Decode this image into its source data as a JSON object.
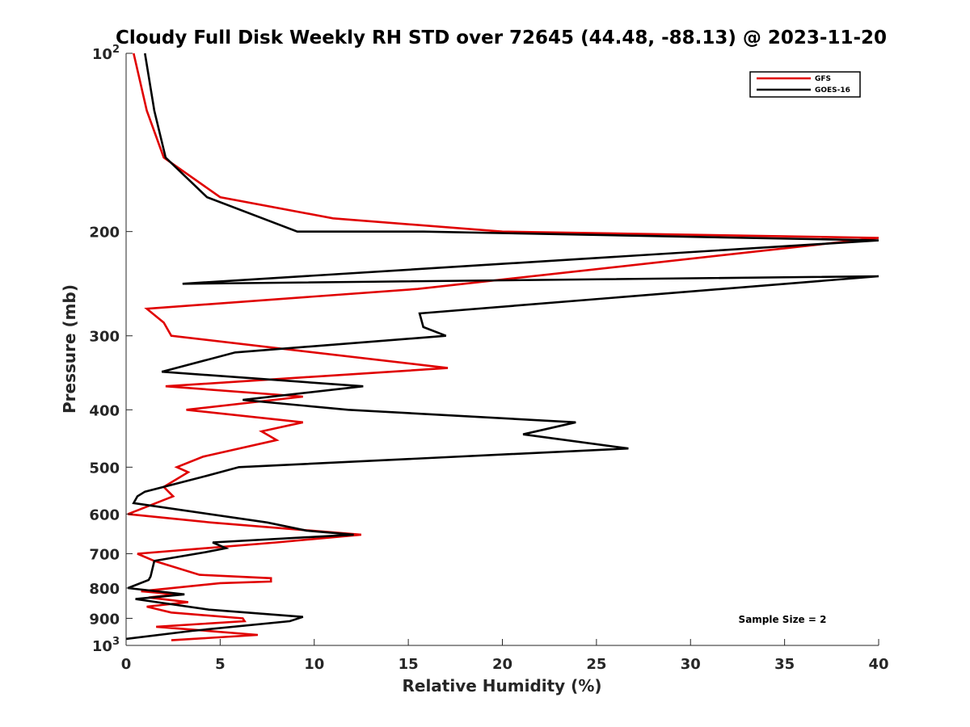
{
  "chart_data": {
    "type": "line",
    "title": "Cloudy Full Disk Weekly RH STD over 72645 (44.48, -88.13) @ 2023-11-20",
    "xlabel": "Relative Humidity (%)",
    "ylabel": "Pressure (mb)",
    "xlim": [
      0,
      40
    ],
    "ylim": [
      100,
      1000
    ],
    "y_scale": "log",
    "y_reversed": true,
    "grid": false,
    "legend_position": "top-right",
    "x_ticks": [
      {
        "value": 0,
        "label": "0"
      },
      {
        "value": 5,
        "label": "5"
      },
      {
        "value": 10,
        "label": "10"
      },
      {
        "value": 15,
        "label": "15"
      },
      {
        "value": 20,
        "label": "20"
      },
      {
        "value": 25,
        "label": "25"
      },
      {
        "value": 30,
        "label": "30"
      },
      {
        "value": 35,
        "label": "35"
      },
      {
        "value": 40,
        "label": "40"
      }
    ],
    "y_ticks": [
      {
        "value": 100,
        "base": "10",
        "exp": "2"
      },
      {
        "value": 200,
        "label": "200"
      },
      {
        "value": 300,
        "label": "300"
      },
      {
        "value": 400,
        "label": "400"
      },
      {
        "value": 500,
        "label": "500"
      },
      {
        "value": 600,
        "label": "600"
      },
      {
        "value": 700,
        "label": "700"
      },
      {
        "value": 800,
        "label": "800"
      },
      {
        "value": 900,
        "label": "900"
      },
      {
        "value": 1000,
        "base": "10",
        "exp": "3"
      }
    ],
    "series": [
      {
        "name": "GFS",
        "color": "#e00000",
        "points": [
          [
            0.4,
            100
          ],
          [
            1.1,
            125
          ],
          [
            2.0,
            150
          ],
          [
            5.0,
            175
          ],
          [
            11.0,
            190
          ],
          [
            20.0,
            200
          ],
          [
            40.0,
            205
          ],
          [
            15.5,
            250
          ],
          [
            1.1,
            270
          ],
          [
            2.0,
            285
          ],
          [
            2.4,
            300
          ],
          [
            17.1,
            340
          ],
          [
            2.1,
            365
          ],
          [
            9.4,
            380
          ],
          [
            3.2,
            400
          ],
          [
            9.4,
            420
          ],
          [
            7.2,
            435
          ],
          [
            8.0,
            450
          ],
          [
            4.1,
            480
          ],
          [
            2.7,
            500
          ],
          [
            3.3,
            510
          ],
          [
            2.0,
            540
          ],
          [
            2.5,
            560
          ],
          [
            0.1,
            600
          ],
          [
            4.5,
            620
          ],
          [
            12.5,
            650
          ],
          [
            8.0,
            670
          ],
          [
            0.6,
            700
          ],
          [
            1.5,
            720
          ],
          [
            3.9,
            760
          ],
          [
            7.7,
            770
          ],
          [
            7.7,
            780
          ],
          [
            5.0,
            785
          ],
          [
            0.8,
            810
          ],
          [
            2.7,
            820
          ],
          [
            1.2,
            830
          ],
          [
            3.3,
            845
          ],
          [
            1.1,
            860
          ],
          [
            2.4,
            880
          ],
          [
            6.2,
            900
          ],
          [
            6.3,
            910
          ],
          [
            1.6,
            930
          ],
          [
            7.0,
            960
          ],
          [
            2.4,
            980
          ]
        ]
      },
      {
        "name": "GOES-16",
        "color": "#000000",
        "points": [
          [
            1.0,
            100
          ],
          [
            1.5,
            125
          ],
          [
            2.1,
            150
          ],
          [
            4.3,
            175
          ],
          [
            9.1,
            200
          ],
          [
            15.8,
            200
          ],
          [
            40.0,
            207
          ],
          [
            3.0,
            245
          ],
          [
            40.0,
            238
          ],
          [
            15.6,
            275
          ],
          [
            15.8,
            290
          ],
          [
            17.0,
            300
          ],
          [
            5.8,
            320
          ],
          [
            1.9,
            345
          ],
          [
            12.6,
            365
          ],
          [
            6.2,
            385
          ],
          [
            11.8,
            400
          ],
          [
            23.9,
            420
          ],
          [
            21.1,
            440
          ],
          [
            26.7,
            465
          ],
          [
            6.0,
            500
          ],
          [
            4.0,
            520
          ],
          [
            1.0,
            550
          ],
          [
            0.6,
            560
          ],
          [
            0.4,
            575
          ],
          [
            7.5,
            620
          ],
          [
            9.6,
            640
          ],
          [
            12.1,
            650
          ],
          [
            4.6,
            670
          ],
          [
            5.3,
            685
          ],
          [
            4.3,
            695
          ],
          [
            1.5,
            720
          ],
          [
            1.3,
            765
          ],
          [
            1.2,
            775
          ],
          [
            0.1,
            800
          ],
          [
            3.1,
            820
          ],
          [
            0.5,
            835
          ],
          [
            4.4,
            870
          ],
          [
            9.4,
            895
          ],
          [
            8.7,
            910
          ],
          [
            3.5,
            945
          ],
          [
            0.0,
            975
          ]
        ]
      }
    ],
    "annotations": [
      "Sample Size = 2"
    ]
  }
}
